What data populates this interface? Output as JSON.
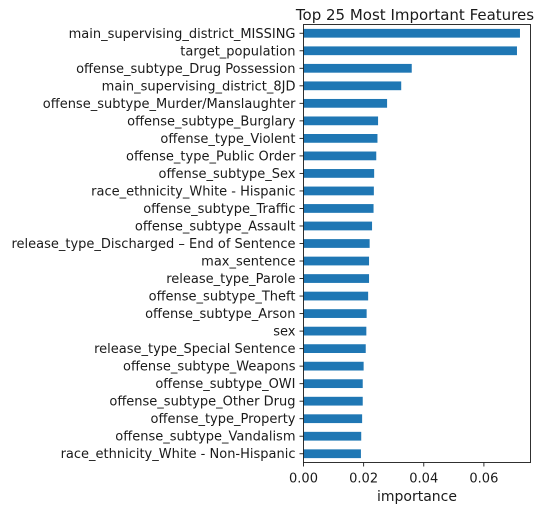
{
  "chart_data": {
    "type": "bar",
    "orientation": "horizontal",
    "title": "Top 25 Most Important Features",
    "xlabel": "importance",
    "ylabel": "",
    "xlim": [
      0.0,
      0.0755
    ],
    "xticks": [
      "0.00",
      "0.02",
      "0.04",
      "0.06"
    ],
    "xtick_values": [
      0.0,
      0.02,
      0.04,
      0.06
    ],
    "grid": false,
    "legend": "none",
    "bar_color": "#1f77b4",
    "categories": [
      "main_supervising_district_MISSING",
      "target_population",
      "offense_subtype_Drug Possession",
      "main_supervising_district_8JD",
      "offense_subtype_Murder/Manslaughter",
      "offense_subtype_Burglary",
      "offense_type_Violent",
      "offense_type_Public Order",
      "offense_subtype_Sex",
      "race_ethnicity_White - Hispanic",
      "offense_subtype_Traffic",
      "offense_subtype_Assault",
      "release_type_Discharged – End of Sentence",
      "max_sentence",
      "release_type_Parole",
      "offense_subtype_Theft",
      "offense_subtype_Arson",
      "sex",
      "release_type_Special Sentence",
      "offense_subtype_Weapons",
      "offense_subtype_OWI",
      "offense_subtype_Other Drug",
      "offense_type_Property",
      "offense_subtype_Vandalism",
      "race_ethnicity_White - Non-Hispanic"
    ],
    "values": [
      0.072,
      0.071,
      0.036,
      0.0325,
      0.0278,
      0.0248,
      0.0246,
      0.0242,
      0.0235,
      0.0234,
      0.0233,
      0.0228,
      0.022,
      0.0218,
      0.0218,
      0.0215,
      0.021,
      0.0209,
      0.0207,
      0.02,
      0.0197,
      0.0197,
      0.0195,
      0.0192,
      0.0191
    ]
  }
}
